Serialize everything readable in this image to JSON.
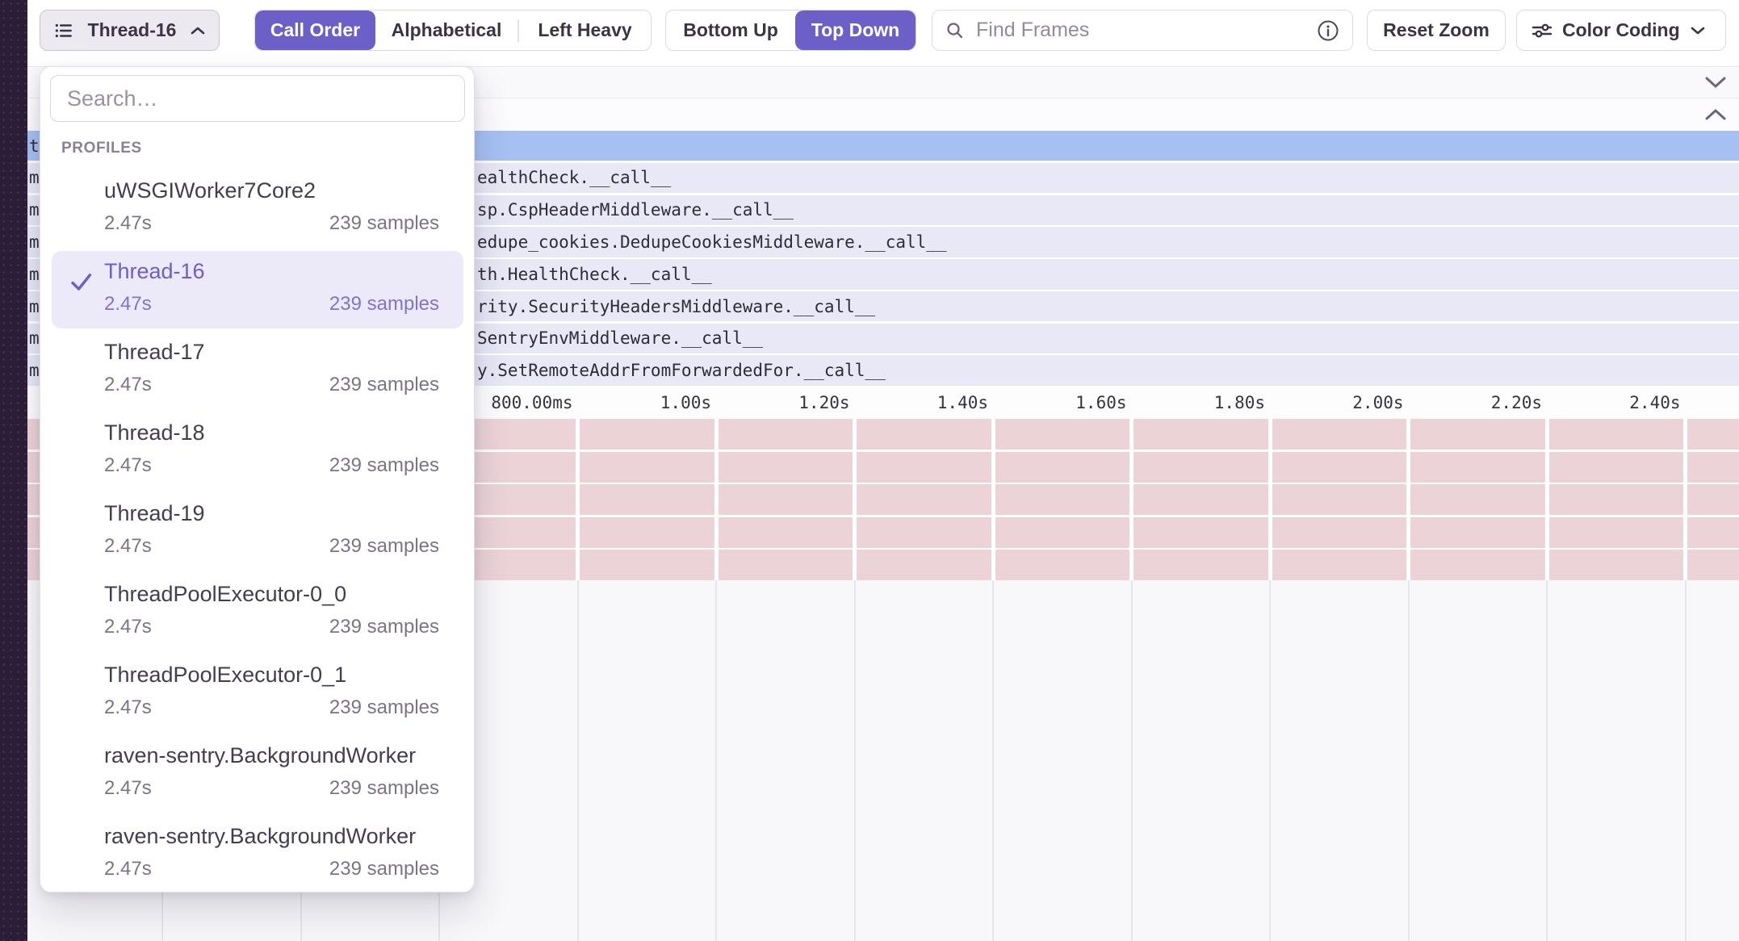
{
  "toolbar": {
    "thread_selector": {
      "label": "Thread-16"
    },
    "sorting": {
      "options": [
        "Call Order",
        "Alphabetical",
        "Left Heavy"
      ],
      "selected": "Call Order"
    },
    "direction": {
      "options": [
        "Bottom Up",
        "Top Down"
      ],
      "selected": "Top Down"
    },
    "search": {
      "placeholder": "Find Frames"
    },
    "reset_zoom_label": "Reset Zoom",
    "color_coding_label": "Color Coding"
  },
  "dropdown": {
    "search_placeholder": "Search…",
    "section_label": "PROFILES",
    "items": [
      {
        "name": "uWSGIWorker7Core2",
        "duration": "2.47s",
        "samples": "239 samples",
        "selected": false
      },
      {
        "name": "Thread-16",
        "duration": "2.47s",
        "samples": "239 samples",
        "selected": true
      },
      {
        "name": "Thread-17",
        "duration": "2.47s",
        "samples": "239 samples",
        "selected": false
      },
      {
        "name": "Thread-18",
        "duration": "2.47s",
        "samples": "239 samples",
        "selected": false
      },
      {
        "name": "Thread-19",
        "duration": "2.47s",
        "samples": "239 samples",
        "selected": false
      },
      {
        "name": "ThreadPoolExecutor-0_0",
        "duration": "2.47s",
        "samples": "239 samples",
        "selected": false
      },
      {
        "name": "ThreadPoolExecutor-0_1",
        "duration": "2.47s",
        "samples": "239 samples",
        "selected": false
      },
      {
        "name": "raven-sentry.BackgroundWorker",
        "duration": "2.47s",
        "samples": "239 samples",
        "selected": false
      },
      {
        "name": "raven-sentry.BackgroundWorker",
        "duration": "2.47s",
        "samples": "239 samples",
        "selected": false
      }
    ]
  },
  "flamegraph": {
    "rows": [
      {
        "left": "t",
        "right": "",
        "selected": true
      },
      {
        "left": "m",
        "right": "ealthCheck.__call__",
        "selected": false
      },
      {
        "left": "m",
        "right": "sp.CspHeaderMiddleware.__call__",
        "selected": false
      },
      {
        "left": "m",
        "right": "edupe_cookies.DedupeCookiesMiddleware.__call__",
        "selected": false
      },
      {
        "left": "m",
        "right": "th.HealthCheck.__call__",
        "selected": false
      },
      {
        "left": "m",
        "right": "rity.SecurityHeadersMiddleware.__call__",
        "selected": false
      },
      {
        "left": "m",
        "right": "SentryEnvMiddleware.__call__",
        "selected": false
      },
      {
        "left": "m",
        "right": "y.SetRemoteAddrFromForwardedFor.__call__",
        "selected": false
      }
    ],
    "axis_ticks": [
      "800.00ms",
      "1.00s",
      "1.20s",
      "1.40s",
      "1.60s",
      "1.80s",
      "2.00s",
      "2.20s",
      "2.40s"
    ]
  },
  "minimap": {
    "row_count": 5
  },
  "colors": {
    "accent_purple": "#6C5FC7",
    "selected_row_blue": "#A6C0F2",
    "frame_row_lavender": "#E8E8F6",
    "minimap_row_pink": "#EBD3D7",
    "sidebar_dark": "#2B1D37"
  }
}
